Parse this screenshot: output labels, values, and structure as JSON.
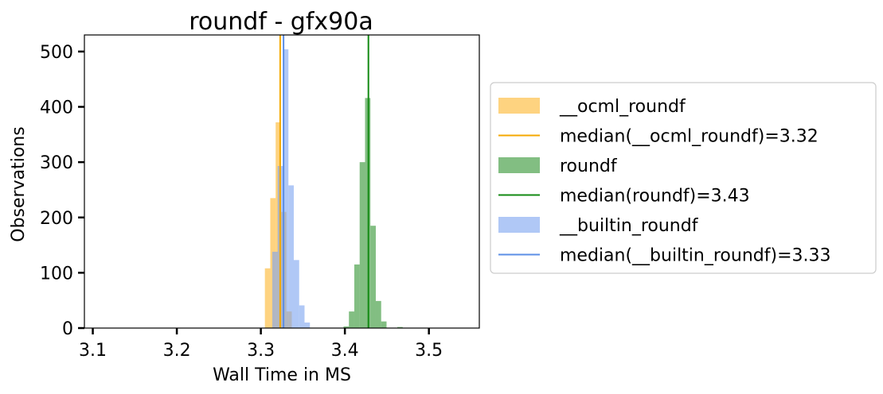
{
  "chart_data": {
    "type": "histogram",
    "title": "roundf - gfx90a",
    "xlabel": "Wall Time in MS",
    "ylabel": "Observations",
    "xlim": [
      3.09,
      3.56
    ],
    "ylim": [
      0,
      530
    ],
    "xticks": [
      3.1,
      3.2,
      3.3,
      3.4,
      3.5
    ],
    "yticks": [
      0,
      100,
      200,
      300,
      400,
      500
    ],
    "bin_width": 0.0064,
    "legend_position": "right-outside",
    "grid": false,
    "series": [
      {
        "name": "__ocml_roundf",
        "color": "#fdb52b",
        "alpha": 0.6,
        "bins": [
          {
            "x": 3.3048,
            "y": 108
          },
          {
            "x": 3.3112,
            "y": 235
          },
          {
            "x": 3.3176,
            "y": 372
          },
          {
            "x": 3.324,
            "y": 210
          },
          {
            "x": 3.3304,
            "y": 30
          }
        ]
      },
      {
        "name": "roundf",
        "color": "#2e932e",
        "alpha": 0.6,
        "bins": [
          {
            "x": 3.3984,
            "y": 3
          },
          {
            "x": 3.4048,
            "y": 30
          },
          {
            "x": 3.4112,
            "y": 115
          },
          {
            "x": 3.4176,
            "y": 300
          },
          {
            "x": 3.424,
            "y": 416
          },
          {
            "x": 3.4304,
            "y": 185
          },
          {
            "x": 3.4368,
            "y": 49
          },
          {
            "x": 3.4432,
            "y": 12
          },
          {
            "x": 3.4624,
            "y": 2
          }
        ]
      },
      {
        "name": "__builtin_roundf",
        "color": "#7ba4f0",
        "alpha": 0.6,
        "bins": [
          {
            "x": 3.3136,
            "y": 138
          },
          {
            "x": 3.32,
            "y": 293
          },
          {
            "x": 3.3264,
            "y": 504
          },
          {
            "x": 3.3328,
            "y": 258
          },
          {
            "x": 3.3392,
            "y": 123
          },
          {
            "x": 3.3456,
            "y": 41
          },
          {
            "x": 3.352,
            "y": 10
          }
        ]
      }
    ],
    "medians": [
      {
        "label": "median(__ocml_roundf)=3.32",
        "value": 3.323,
        "color": "#f5a800"
      },
      {
        "label": "median(roundf)=3.43",
        "value": 3.428,
        "color": "#138a13"
      },
      {
        "label": "median(__builtin_roundf)=3.33",
        "value": 3.327,
        "color": "#5b8ee6"
      }
    ],
    "legend": [
      {
        "kind": "patch",
        "label": "__ocml_roundf",
        "color": "#fdb52b"
      },
      {
        "kind": "line",
        "label": "median(__ocml_roundf)=3.32",
        "color": "#f5a800"
      },
      {
        "kind": "patch",
        "label": "roundf",
        "color": "#2e932e"
      },
      {
        "kind": "line",
        "label": "median(roundf)=3.43",
        "color": "#138a13"
      },
      {
        "kind": "patch",
        "label": "__builtin_roundf",
        "color": "#7ba4f0"
      },
      {
        "kind": "line",
        "label": "median(__builtin_roundf)=3.33",
        "color": "#5b8ee6"
      }
    ]
  }
}
